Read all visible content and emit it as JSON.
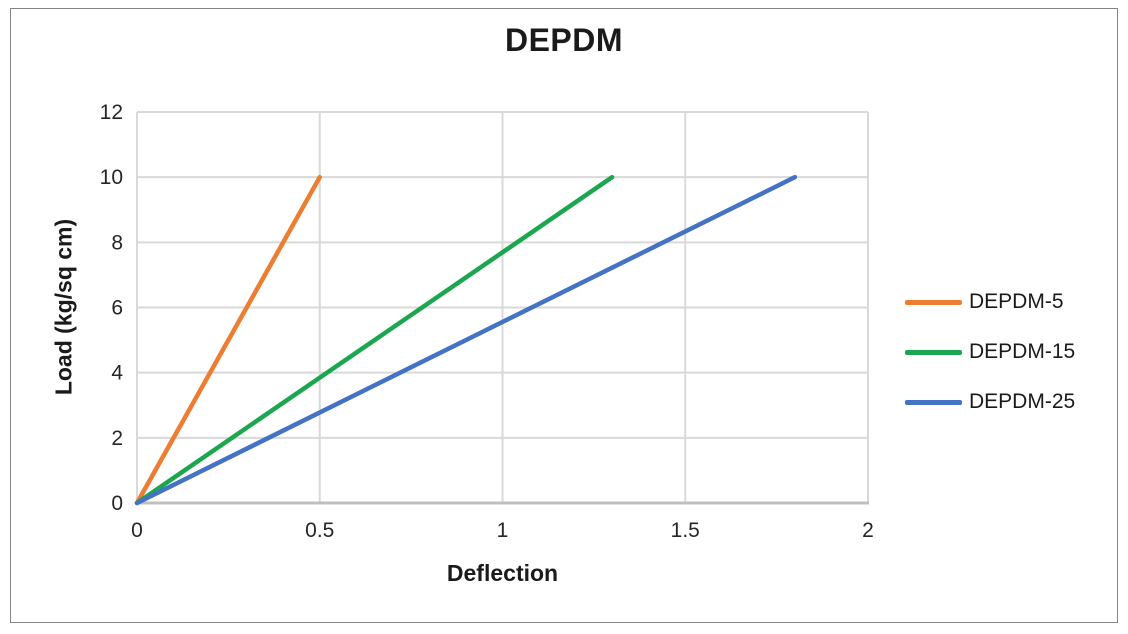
{
  "window": {
    "background": "#FFFFFF",
    "border_color": "#858585"
  },
  "chart_data": {
    "type": "line",
    "title": "DEPDM",
    "xlabel": "Deflection",
    "ylabel": "Load (kg/sq cm)",
    "xlim": [
      0,
      2
    ],
    "ylim": [
      0,
      12
    ],
    "x_ticks": [
      0,
      0.5,
      1,
      1.5,
      2
    ],
    "x_tick_labels": [
      "0",
      "0.5",
      "1",
      "1.5",
      "2"
    ],
    "y_ticks": [
      0,
      2,
      4,
      6,
      8,
      10,
      12
    ],
    "y_tick_labels": [
      "0",
      "2",
      "4",
      "6",
      "8",
      "10",
      "12"
    ],
    "grid": true,
    "gridline_color": "#D9D9D9",
    "axis_line_color": "#BFBFBF",
    "legend_position": "right",
    "series": [
      {
        "name": "DEPDM-5",
        "color": "#ED7D31",
        "points": [
          [
            0,
            0
          ],
          [
            0.5,
            10
          ]
        ]
      },
      {
        "name": "DEPDM-15",
        "color": "#1CA64F",
        "points": [
          [
            0,
            0
          ],
          [
            1.3,
            10
          ]
        ]
      },
      {
        "name": "DEPDM-25",
        "color": "#4472C4",
        "points": [
          [
            0,
            0
          ],
          [
            1.8,
            10
          ]
        ]
      }
    ]
  }
}
